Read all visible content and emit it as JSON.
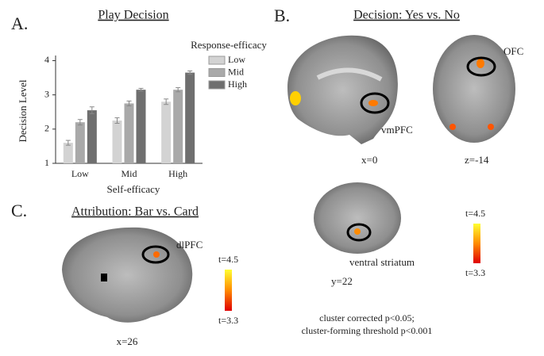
{
  "chart_data": {
    "type": "bar",
    "letter": "A.",
    "title": "Play Decision",
    "x_label": "Self-efficacy",
    "y_label": "Decision Level",
    "legend_title": "Response-efficacy",
    "categories": [
      "Low",
      "Mid",
      "High"
    ],
    "series": [
      {
        "name": "Low",
        "color": "#d3d3d3",
        "values": [
          1.6,
          2.25,
          2.8
        ],
        "errors": [
          0.07,
          0.08,
          0.08
        ]
      },
      {
        "name": "Mid",
        "color": "#a9a9a9",
        "values": [
          2.2,
          2.75,
          3.15
        ],
        "errors": [
          0.08,
          0.07,
          0.06
        ]
      },
      {
        "name": "High",
        "color": "#6f6f6f",
        "values": [
          2.55,
          3.15,
          3.65
        ],
        "errors": [
          0.1,
          0.04,
          0.05
        ]
      }
    ],
    "ylim": [
      1,
      4.15
    ],
    "yticks": [
      1,
      2,
      3,
      4
    ]
  },
  "panel_b": {
    "letter": "B.",
    "title": "Decision: Yes vs. No",
    "regions": [
      "vmPFC",
      "OFC",
      "ventral striatum"
    ],
    "coords": [
      "x=0",
      "z=-14",
      "y=22"
    ],
    "colorbar": {
      "max": "t=4.5",
      "min": "t=3.3"
    },
    "note": [
      "cluster corrected p<0.05;",
      "cluster-forming threshold p<0.001"
    ]
  },
  "panel_c": {
    "letter": "C.",
    "title": "Attribution: Bar vs. Card",
    "region": "dlPFC",
    "coord": "x=26",
    "colorbar": {
      "max": "t=4.5",
      "min": "t=3.3"
    }
  }
}
